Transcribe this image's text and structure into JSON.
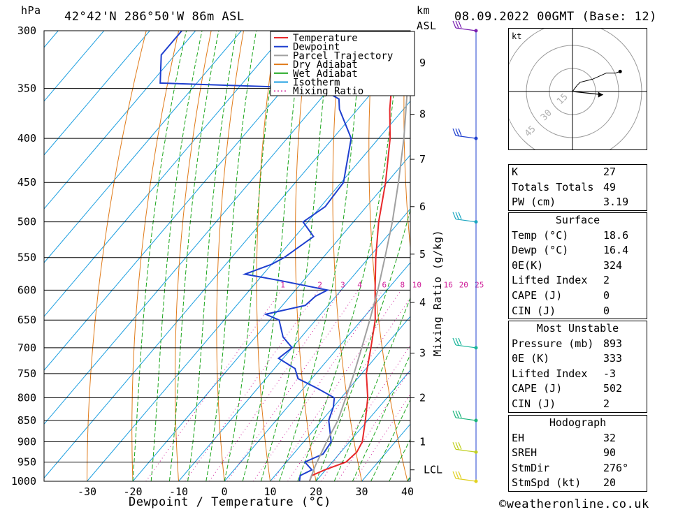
{
  "header": {
    "pressure_unit": "hPa",
    "location": "42°42'N  286°50'W  86m  ASL",
    "km_unit": "km",
    "km_sub": "ASL",
    "datetime": "08.09.2022  00GMT  (Base: 12)"
  },
  "footer": {
    "xlabel": "Dewpoint / Temperature (°C)",
    "copyright": "©weatheronline.co.uk",
    "mixing_axis": "Mixing Ratio (g/kg)"
  },
  "legend": [
    {
      "name": "Temperature",
      "color": "#e8282a",
      "style": "solid"
    },
    {
      "name": "Dewpoint",
      "color": "#1e3fcf",
      "style": "solid"
    },
    {
      "name": "Parcel Trajectory",
      "color": "#a0a0a0",
      "style": "solid"
    },
    {
      "name": "Dry Adiabat",
      "color": "#e07b1a",
      "style": "solid"
    },
    {
      "name": "Wet Adiabat",
      "color": "#1aa51a",
      "style": "solid"
    },
    {
      "name": "Isotherm",
      "color": "#1a9ee0",
      "style": "solid"
    },
    {
      "name": "Mixing Ratio",
      "color": "#d0209a",
      "style": "dotted"
    }
  ],
  "chart_data": {
    "type": "line",
    "x_unit": "°C",
    "y_unit": "hPa",
    "xlim": [
      -40,
      40
    ],
    "x_ticks": [
      -30,
      -20,
      -10,
      0,
      10,
      20,
      30,
      40
    ],
    "y_ticks": [
      300,
      350,
      400,
      450,
      500,
      550,
      600,
      650,
      700,
      750,
      800,
      850,
      900,
      950,
      1000
    ],
    "km_ticks": [
      {
        "label": "9",
        "p": 327
      },
      {
        "label": "8",
        "p": 375
      },
      {
        "label": "7",
        "p": 423
      },
      {
        "label": "6",
        "p": 480
      },
      {
        "label": "5",
        "p": 545
      },
      {
        "label": "4",
        "p": 620
      },
      {
        "label": "3",
        "p": 710
      },
      {
        "label": "2",
        "p": 800
      },
      {
        "label": "1",
        "p": 900
      },
      {
        "label": "LCL",
        "p": 970
      }
    ],
    "mixing_ratio_labels": [
      "1",
      "2",
      "3",
      "4",
      "6",
      "8",
      "10",
      "16",
      "20",
      "25"
    ],
    "mixing_ratio_values": [
      1,
      2,
      3,
      4,
      6,
      8,
      10,
      16,
      20,
      25
    ],
    "series": [
      {
        "name": "Temperature",
        "color": "#e8282a",
        "points": [
          [
            1000,
            18.6
          ],
          [
            985,
            18.0
          ],
          [
            970,
            19.8
          ],
          [
            950,
            23.0
          ],
          [
            925,
            23.5
          ],
          [
            900,
            22.8
          ],
          [
            850,
            19.5
          ],
          [
            800,
            15.8
          ],
          [
            750,
            11.0
          ],
          [
            700,
            7.2
          ],
          [
            650,
            3.0
          ],
          [
            600,
            -2.6
          ],
          [
            550,
            -8.5
          ],
          [
            500,
            -14.5
          ],
          [
            450,
            -20.3
          ],
          [
            400,
            -27.5
          ],
          [
            370,
            -33.0
          ],
          [
            350,
            -36.5
          ],
          [
            330,
            -40.0
          ],
          [
            300,
            -44.5
          ]
        ]
      },
      {
        "name": "Dewpoint",
        "color": "#1e3fcf",
        "points": [
          [
            1000,
            16.4
          ],
          [
            985,
            15.5
          ],
          [
            970,
            17.0
          ],
          [
            950,
            14.0
          ],
          [
            930,
            16.5
          ],
          [
            900,
            16.0
          ],
          [
            850,
            11.5
          ],
          [
            820,
            10.0
          ],
          [
            800,
            8.5
          ],
          [
            780,
            3.0
          ],
          [
            760,
            -3.0
          ],
          [
            740,
            -5.5
          ],
          [
            720,
            -11.0
          ],
          [
            700,
            -10.0
          ],
          [
            680,
            -14.0
          ],
          [
            650,
            -18.0
          ],
          [
            640,
            -22.0
          ],
          [
            625,
            -15.0
          ],
          [
            610,
            -14.5
          ],
          [
            600,
            -13.0
          ],
          [
            585,
            -25.0
          ],
          [
            575,
            -34.0
          ],
          [
            560,
            -30.0
          ],
          [
            550,
            -28.5
          ],
          [
            520,
            -26.0
          ],
          [
            500,
            -31.0
          ],
          [
            480,
            -29.0
          ],
          [
            450,
            -29.5
          ],
          [
            400,
            -36.0
          ],
          [
            370,
            -44.0
          ],
          [
            360,
            -46.0
          ],
          [
            350,
            -52.0
          ],
          [
            345,
            -88.0
          ],
          [
            320,
            -93.0
          ],
          [
            300,
            -93.0
          ]
        ]
      },
      {
        "name": "Parcel Trajectory",
        "color": "#a0a0a0",
        "points": [
          [
            1000,
            18.6
          ],
          [
            960,
            17.0
          ],
          [
            900,
            15.0
          ],
          [
            850,
            13.5
          ],
          [
            800,
            11.0
          ],
          [
            750,
            8.3
          ],
          [
            700,
            5.2
          ],
          [
            650,
            1.8
          ],
          [
            600,
            -2.0
          ],
          [
            550,
            -6.5
          ],
          [
            500,
            -11.5
          ],
          [
            450,
            -17.5
          ],
          [
            400,
            -24.5
          ],
          [
            350,
            -33.0
          ],
          [
            300,
            -44.0
          ]
        ]
      }
    ],
    "wind_barbs": [
      {
        "p": 300,
        "color": "#7a1fb0"
      },
      {
        "p": 400,
        "color": "#1e3fcf"
      },
      {
        "p": 500,
        "color": "#1aa5c0"
      },
      {
        "p": 700,
        "color": "#1ab59a"
      },
      {
        "p": 850,
        "color": "#1ab57a"
      },
      {
        "p": 925,
        "color": "#c0d020"
      },
      {
        "p": 1000,
        "color": "#e0d020"
      }
    ],
    "hodograph": {
      "unit": "kt",
      "rings": [
        "15",
        "30",
        "45"
      ],
      "trace_kt": [
        [
          0,
          0
        ],
        [
          3,
          4
        ],
        [
          5,
          6
        ],
        [
          13,
          8
        ],
        [
          22,
          12
        ],
        [
          28,
          12
        ],
        [
          31,
          13
        ]
      ],
      "storm_motion": {
        "dir_deg": 276,
        "spd_kt": 20
      }
    }
  },
  "indices": {
    "rows": [
      {
        "label": "K",
        "value": "27"
      },
      {
        "label": "Totals Totals",
        "value": "49"
      },
      {
        "label": "PW (cm)",
        "value": "3.19"
      }
    ]
  },
  "surface": {
    "title": "Surface",
    "rows": [
      {
        "label": "Temp (°C)",
        "value": "18.6"
      },
      {
        "label": "Dewp (°C)",
        "value": "16.4"
      },
      {
        "label": "θE(K)",
        "value": "324"
      },
      {
        "label": "Lifted Index",
        "value": "2"
      },
      {
        "label": "CAPE (J)",
        "value": "0"
      },
      {
        "label": "CIN (J)",
        "value": "0"
      }
    ]
  },
  "most_unstable": {
    "title": "Most Unstable",
    "rows": [
      {
        "label": "Pressure (mb)",
        "value": "893"
      },
      {
        "label": "θE (K)",
        "value": "333"
      },
      {
        "label": "Lifted Index",
        "value": "-3"
      },
      {
        "label": "CAPE (J)",
        "value": "502"
      },
      {
        "label": "CIN (J)",
        "value": "2"
      }
    ]
  },
  "hodograph_tbl": {
    "title": "Hodograph",
    "rows": [
      {
        "label": "EH",
        "value": "32"
      },
      {
        "label": "SREH",
        "value": "90"
      },
      {
        "label": "StmDir",
        "value": "276°"
      },
      {
        "label": "StmSpd (kt)",
        "value": "20"
      }
    ]
  }
}
